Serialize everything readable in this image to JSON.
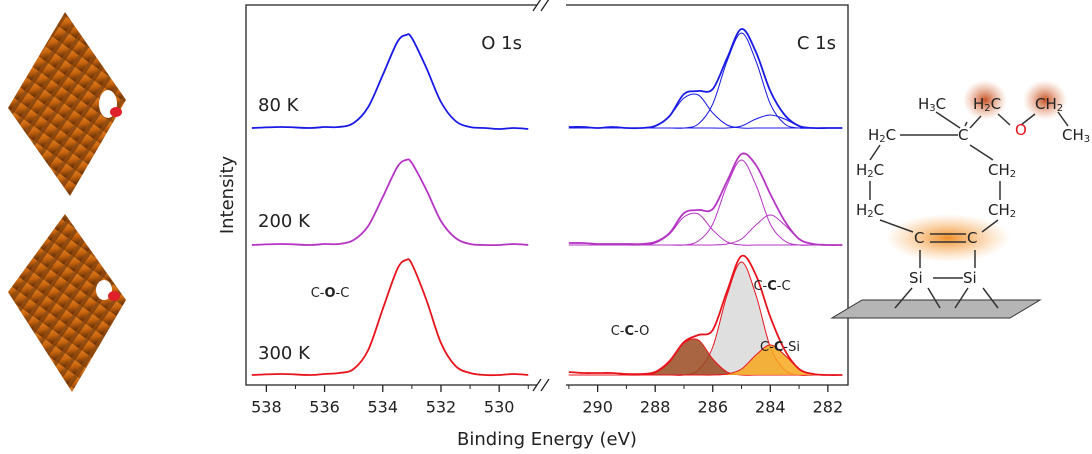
{
  "chart_data": [
    {
      "type": "line",
      "title": "O 1s",
      "xlabel": "Binding Energy (eV)",
      "ylabel": "Intensity",
      "x": [
        538.5,
        537.5,
        536.5,
        536,
        535.5,
        535,
        534.5,
        534,
        533.5,
        533.2,
        533,
        532.5,
        532,
        531.5,
        531,
        530.5,
        530,
        529.5,
        529
      ],
      "xlim": [
        538.7,
        528.7
      ],
      "xticks": [
        538,
        536,
        534,
        532,
        530
      ],
      "xminorticks": [
        537,
        535,
        533,
        531,
        529
      ],
      "ylim": [
        0,
        3.8
      ],
      "series": [
        {
          "name": "80 K",
          "color": "#1a1ae6",
          "style": "data",
          "values": [
            2.57,
            2.58,
            2.57,
            2.58,
            2.58,
            2.62,
            2.78,
            3.1,
            3.43,
            3.5,
            3.47,
            3.17,
            2.83,
            2.64,
            2.58,
            2.57,
            2.56,
            2.57,
            2.56
          ]
        },
        {
          "name": "200 K",
          "color": "#b534c4",
          "style": "data",
          "values": [
            1.4,
            1.41,
            1.4,
            1.41,
            1.41,
            1.45,
            1.59,
            1.88,
            2.18,
            2.25,
            2.22,
            1.95,
            1.64,
            1.47,
            1.41,
            1.4,
            1.4,
            1.41,
            1.4
          ]
        },
        {
          "name": "300 K",
          "color": "#e8141c",
          "style": "data",
          "values": [
            0.1,
            0.11,
            0.1,
            0.11,
            0.12,
            0.16,
            0.35,
            0.76,
            1.16,
            1.25,
            1.21,
            0.85,
            0.42,
            0.19,
            0.12,
            0.1,
            0.1,
            0.11,
            0.1
          ]
        }
      ],
      "annotations": [
        {
          "parts": [
            "C-",
            "O",
            "-C"
          ]
        }
      ]
    },
    {
      "type": "line",
      "title": "C 1s",
      "x": [
        291,
        290.5,
        290,
        289.5,
        289,
        288.5,
        288,
        287.5,
        287,
        286.5,
        286,
        285.5,
        285,
        284.5,
        284,
        283.5,
        283,
        282.5,
        282,
        281.5
      ],
      "xlim": [
        291.1,
        281.3
      ],
      "xticks": [
        290,
        288,
        286,
        284,
        282
      ],
      "xminorticks": [
        291,
        289,
        287,
        285,
        283
      ],
      "ylim": [
        0,
        3.8
      ],
      "series": [
        {
          "color": "#1a1ae6",
          "style": "fit",
          "values": [
            2.57,
            2.57,
            2.57,
            2.57,
            2.57,
            2.57,
            2.57,
            2.57,
            2.57,
            2.61,
            2.81,
            3.24,
            3.52,
            3.24,
            2.81,
            2.61,
            2.57,
            2.57,
            2.57,
            2.57
          ]
        },
        {
          "color": "#1a1ae6",
          "style": "fit",
          "values": [
            2.57,
            2.57,
            2.57,
            2.57,
            2.57,
            2.57,
            2.59,
            2.69,
            2.87,
            2.9,
            2.72,
            2.6,
            2.57,
            2.57,
            2.57,
            2.57,
            2.57,
            2.57,
            2.57,
            2.57
          ]
        },
        {
          "color": "#1a1ae6",
          "style": "fit",
          "values": [
            2.57,
            2.57,
            2.57,
            2.57,
            2.57,
            2.57,
            2.57,
            2.57,
            2.57,
            2.57,
            2.57,
            2.57,
            2.59,
            2.66,
            2.7,
            2.66,
            2.59,
            2.57,
            2.57,
            2.57
          ]
        },
        {
          "color": "#1a1ae6",
          "style": "data",
          "values": [
            2.58,
            2.58,
            2.57,
            2.58,
            2.57,
            2.57,
            2.59,
            2.69,
            2.91,
            2.94,
            2.96,
            3.27,
            3.56,
            3.33,
            2.94,
            2.7,
            2.59,
            2.57,
            2.57,
            2.57
          ]
        },
        {
          "color": "#b534c4",
          "style": "fit",
          "values": [
            1.4,
            1.4,
            1.4,
            1.4,
            1.4,
            1.4,
            1.4,
            1.4,
            1.4,
            1.44,
            1.61,
            2.0,
            2.25,
            2.0,
            1.61,
            1.44,
            1.4,
            1.4,
            1.4,
            1.4
          ]
        },
        {
          "color": "#b534c4",
          "style": "fit",
          "values": [
            1.4,
            1.4,
            1.4,
            1.4,
            1.4,
            1.4,
            1.42,
            1.51,
            1.68,
            1.71,
            1.55,
            1.43,
            1.4,
            1.4,
            1.4,
            1.4,
            1.4,
            1.4,
            1.4,
            1.4
          ]
        },
        {
          "color": "#b534c4",
          "style": "fit",
          "values": [
            1.4,
            1.4,
            1.4,
            1.4,
            1.4,
            1.4,
            1.4,
            1.4,
            1.4,
            1.4,
            1.4,
            1.41,
            1.46,
            1.6,
            1.7,
            1.6,
            1.46,
            1.41,
            1.4,
            1.4
          ]
        },
        {
          "color": "#b534c4",
          "style": "data",
          "values": [
            1.42,
            1.42,
            1.41,
            1.41,
            1.41,
            1.41,
            1.43,
            1.52,
            1.72,
            1.75,
            1.76,
            2.04,
            2.31,
            2.2,
            1.91,
            1.64,
            1.46,
            1.41,
            1.4,
            1.4
          ]
        },
        {
          "color": "#e8141c",
          "fill": "#d9d9d9",
          "style": "fit",
          "values": [
            0.1,
            0.1,
            0.1,
            0.1,
            0.1,
            0.1,
            0.1,
            0.1,
            0.1,
            0.15,
            0.38,
            0.9,
            1.23,
            0.9,
            0.38,
            0.15,
            0.1,
            0.1,
            0.1,
            0.1
          ]
        },
        {
          "color": "#e8141c",
          "fill": "#9a4a20",
          "style": "fit",
          "values": [
            0.1,
            0.1,
            0.1,
            0.1,
            0.1,
            0.1,
            0.12,
            0.23,
            0.42,
            0.45,
            0.26,
            0.13,
            0.1,
            0.1,
            0.1,
            0.1,
            0.1,
            0.1,
            0.1,
            0.1
          ]
        },
        {
          "color": "#e8141c",
          "fill": "#f7a81e",
          "style": "fit",
          "values": [
            0.1,
            0.1,
            0.1,
            0.1,
            0.1,
            0.1,
            0.1,
            0.1,
            0.1,
            0.1,
            0.1,
            0.11,
            0.16,
            0.3,
            0.4,
            0.3,
            0.16,
            0.11,
            0.1,
            0.1
          ]
        },
        {
          "color": "#e8141c",
          "style": "data",
          "values": [
            0.13,
            0.12,
            0.12,
            0.12,
            0.11,
            0.11,
            0.13,
            0.24,
            0.43,
            0.5,
            0.55,
            0.94,
            1.29,
            1.1,
            0.68,
            0.35,
            0.16,
            0.11,
            0.1,
            0.1
          ]
        }
      ],
      "annotations": [
        {
          "parts": [
            "C-",
            "C",
            "-O"
          ]
        },
        {
          "parts": [
            "C-",
            "C",
            "-C"
          ]
        },
        {
          "parts": [
            "C-",
            "C",
            "-Si"
          ]
        }
      ]
    }
  ],
  "molecule": {
    "atoms": [
      [
        "H",
        "3",
        "C"
      ],
      [
        "H",
        "2",
        "C"
      ],
      [
        "O"
      ],
      [
        "CH",
        "2"
      ],
      [
        "CH",
        "3"
      ],
      [
        "H",
        "2",
        "C"
      ],
      [
        "C"
      ],
      [
        "H",
        "2",
        "C"
      ],
      [
        "CH",
        "2"
      ],
      [
        "H",
        "2",
        "C"
      ],
      [
        "CH",
        "2"
      ],
      [
        "C"
      ],
      [
        "C"
      ],
      [
        "Si"
      ],
      [
        "Si"
      ]
    ]
  }
}
